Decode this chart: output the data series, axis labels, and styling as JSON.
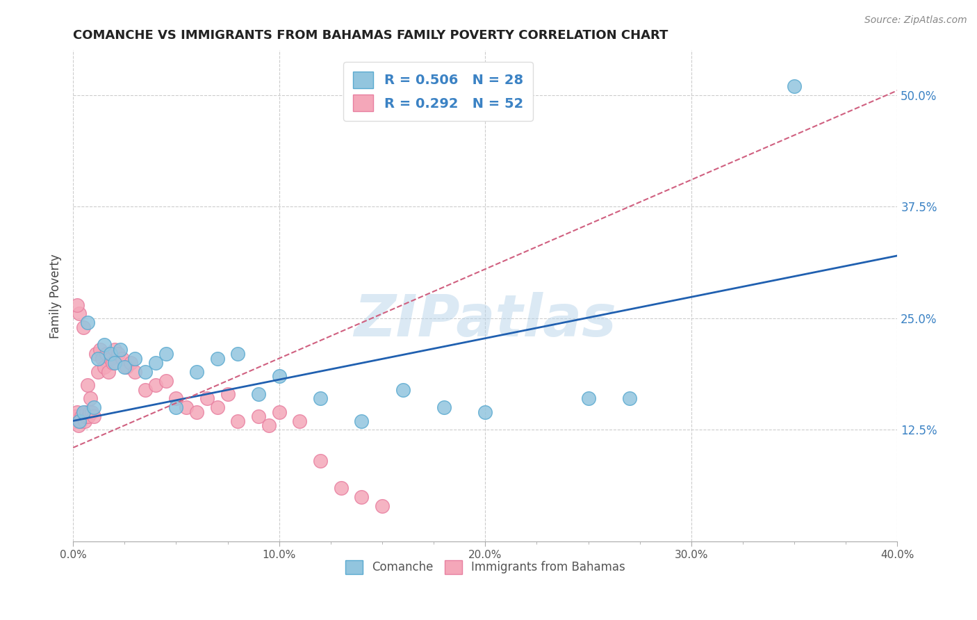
{
  "title": "COMANCHE VS IMMIGRANTS FROM BAHAMAS FAMILY POVERTY CORRELATION CHART",
  "source": "Source: ZipAtlas.com",
  "xlabel_vals": [
    0.0,
    10.0,
    20.0,
    30.0,
    40.0
  ],
  "ylabel_vals": [
    12.5,
    25.0,
    37.5,
    50.0
  ],
  "xlim": [
    0,
    40
  ],
  "ylim": [
    0,
    55
  ],
  "comanche_R": 0.506,
  "comanche_N": 28,
  "bahamas_R": 0.292,
  "bahamas_N": 52,
  "comanche_color": "#92c5de",
  "bahamas_color": "#f4a7b9",
  "comanche_edge": "#5aaad0",
  "bahamas_edge": "#e87fa0",
  "trend_comanche_color": "#2060b0",
  "trend_bahamas_color": "#d06080",
  "watermark_color": "#b8d4ea",
  "comanche_x": [
    0.3,
    0.5,
    0.7,
    1.0,
    1.2,
    1.5,
    1.8,
    2.0,
    2.3,
    2.5,
    3.0,
    3.5,
    4.0,
    4.5,
    5.0,
    6.0,
    7.0,
    8.0,
    9.0,
    10.0,
    12.0,
    14.0,
    16.0,
    18.0,
    20.0,
    25.0,
    27.0,
    35.0
  ],
  "comanche_y": [
    13.5,
    14.5,
    24.5,
    15.0,
    20.5,
    22.0,
    21.0,
    20.0,
    21.5,
    19.5,
    20.5,
    19.0,
    20.0,
    21.0,
    15.0,
    19.0,
    20.5,
    21.0,
    16.5,
    18.5,
    16.0,
    13.5,
    17.0,
    15.0,
    14.5,
    16.0,
    16.0,
    51.0
  ],
  "bahamas_x": [
    0.05,
    0.1,
    0.15,
    0.2,
    0.25,
    0.3,
    0.35,
    0.4,
    0.5,
    0.55,
    0.6,
    0.65,
    0.7,
    0.75,
    0.8,
    0.85,
    0.9,
    1.0,
    1.1,
    1.2,
    1.3,
    1.4,
    1.5,
    1.6,
    1.7,
    1.8,
    1.9,
    2.0,
    2.2,
    2.4,
    2.6,
    2.8,
    3.0,
    3.5,
    4.0,
    4.5,
    5.0,
    5.5,
    6.0,
    6.5,
    7.0,
    7.5,
    8.0,
    9.0,
    9.5,
    10.0,
    11.0,
    12.0,
    13.0,
    14.0,
    15.0,
    0.2
  ],
  "bahamas_y": [
    14.0,
    13.5,
    14.0,
    14.5,
    13.0,
    25.5,
    13.5,
    14.0,
    24.0,
    13.5,
    14.0,
    14.5,
    17.5,
    14.0,
    14.5,
    16.0,
    14.5,
    14.0,
    21.0,
    19.0,
    21.5,
    20.5,
    19.5,
    21.0,
    19.0,
    20.5,
    20.0,
    21.5,
    21.0,
    20.5,
    19.5,
    20.0,
    19.0,
    17.0,
    17.5,
    18.0,
    16.0,
    15.0,
    14.5,
    16.0,
    15.0,
    16.5,
    13.5,
    14.0,
    13.0,
    14.5,
    13.5,
    9.0,
    6.0,
    5.0,
    4.0,
    26.5
  ],
  "trend_comanche_x0": 0,
  "trend_comanche_y0": 13.5,
  "trend_comanche_x1": 40,
  "trend_comanche_y1": 32.0,
  "trend_bahamas_x0": 0,
  "trend_bahamas_y0": 10.5,
  "trend_bahamas_x1": 40,
  "trend_bahamas_y1": 50.5
}
